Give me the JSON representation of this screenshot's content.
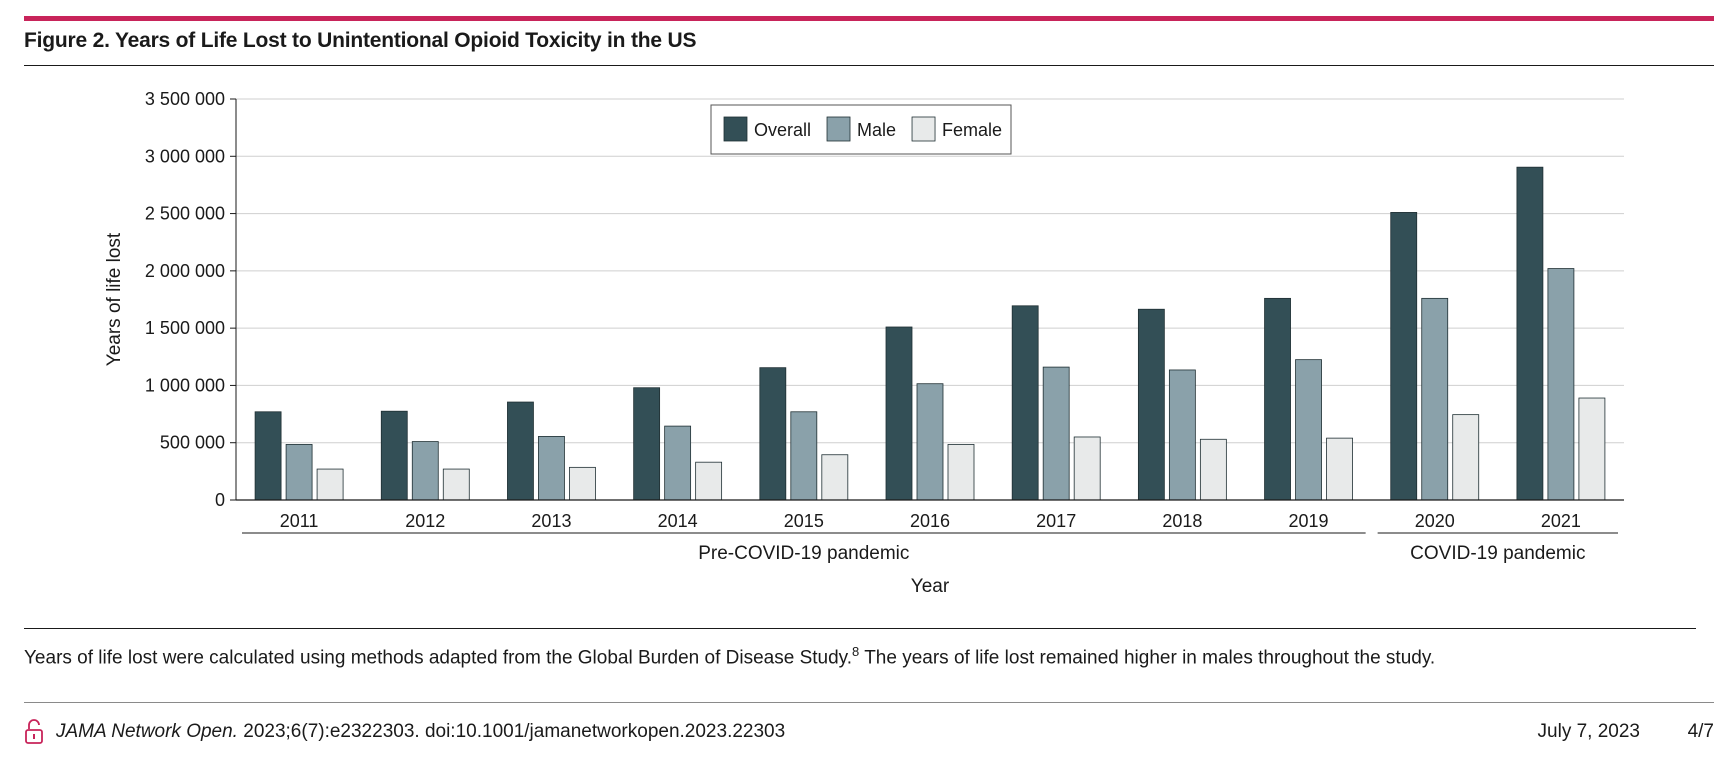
{
  "figure": {
    "title": "Figure 2. Years of Life Lost to Unintentional Opioid Toxicity in the US",
    "caption_text": "Years of life lost were calculated using methods adapted from the Global Burden of Disease Study.",
    "caption_ref": "8",
    "caption_tail": " The years of life lost remained higher in males throughout the study."
  },
  "footer": {
    "journal": "JAMA Network Open.",
    "citation": " 2023;6(7):e2322303. doi:10.1001/jamanetworkopen.2023.22303",
    "date": "July  7, 2023",
    "page": "4/7",
    "icon": "open-access-lock-icon"
  },
  "chart_data": {
    "type": "bar",
    "categories": [
      "2011",
      "2012",
      "2013",
      "2014",
      "2015",
      "2016",
      "2017",
      "2018",
      "2019",
      "2020",
      "2021"
    ],
    "series": [
      {
        "name": "Overall",
        "color": "#334f56",
        "values": [
          770000,
          775000,
          855000,
          980000,
          1155000,
          1510000,
          1695000,
          1665000,
          1760000,
          2510000,
          2905000
        ]
      },
      {
        "name": "Male",
        "color": "#8aa1aa",
        "values": [
          485000,
          510000,
          555000,
          645000,
          770000,
          1015000,
          1160000,
          1135000,
          1225000,
          1760000,
          2020000
        ]
      },
      {
        "name": "Female",
        "color": "#e8eaea",
        "values": [
          270000,
          270000,
          285000,
          330000,
          395000,
          485000,
          550000,
          530000,
          540000,
          745000,
          890000
        ]
      }
    ],
    "ylim": [
      0,
      3500000
    ],
    "yticks": [
      0,
      500000,
      1000000,
      1500000,
      2000000,
      2500000,
      3000000,
      3500000
    ],
    "ytick_labels": [
      "0",
      "500 000",
      "1 000 000",
      "1 500 000",
      "2 000 000",
      "2 500 000",
      "3 000 000",
      "3 500 000"
    ],
    "ylabel": "Years of life lost",
    "xlabel": "Year",
    "groups": [
      {
        "label": "Pre-COVID-19 pandemic",
        "from": "2011",
        "to": "2019"
      },
      {
        "label": "COVID-19 pandemic",
        "from": "2020",
        "to": "2021"
      }
    ],
    "grid": true,
    "legend_position": "top-center"
  }
}
